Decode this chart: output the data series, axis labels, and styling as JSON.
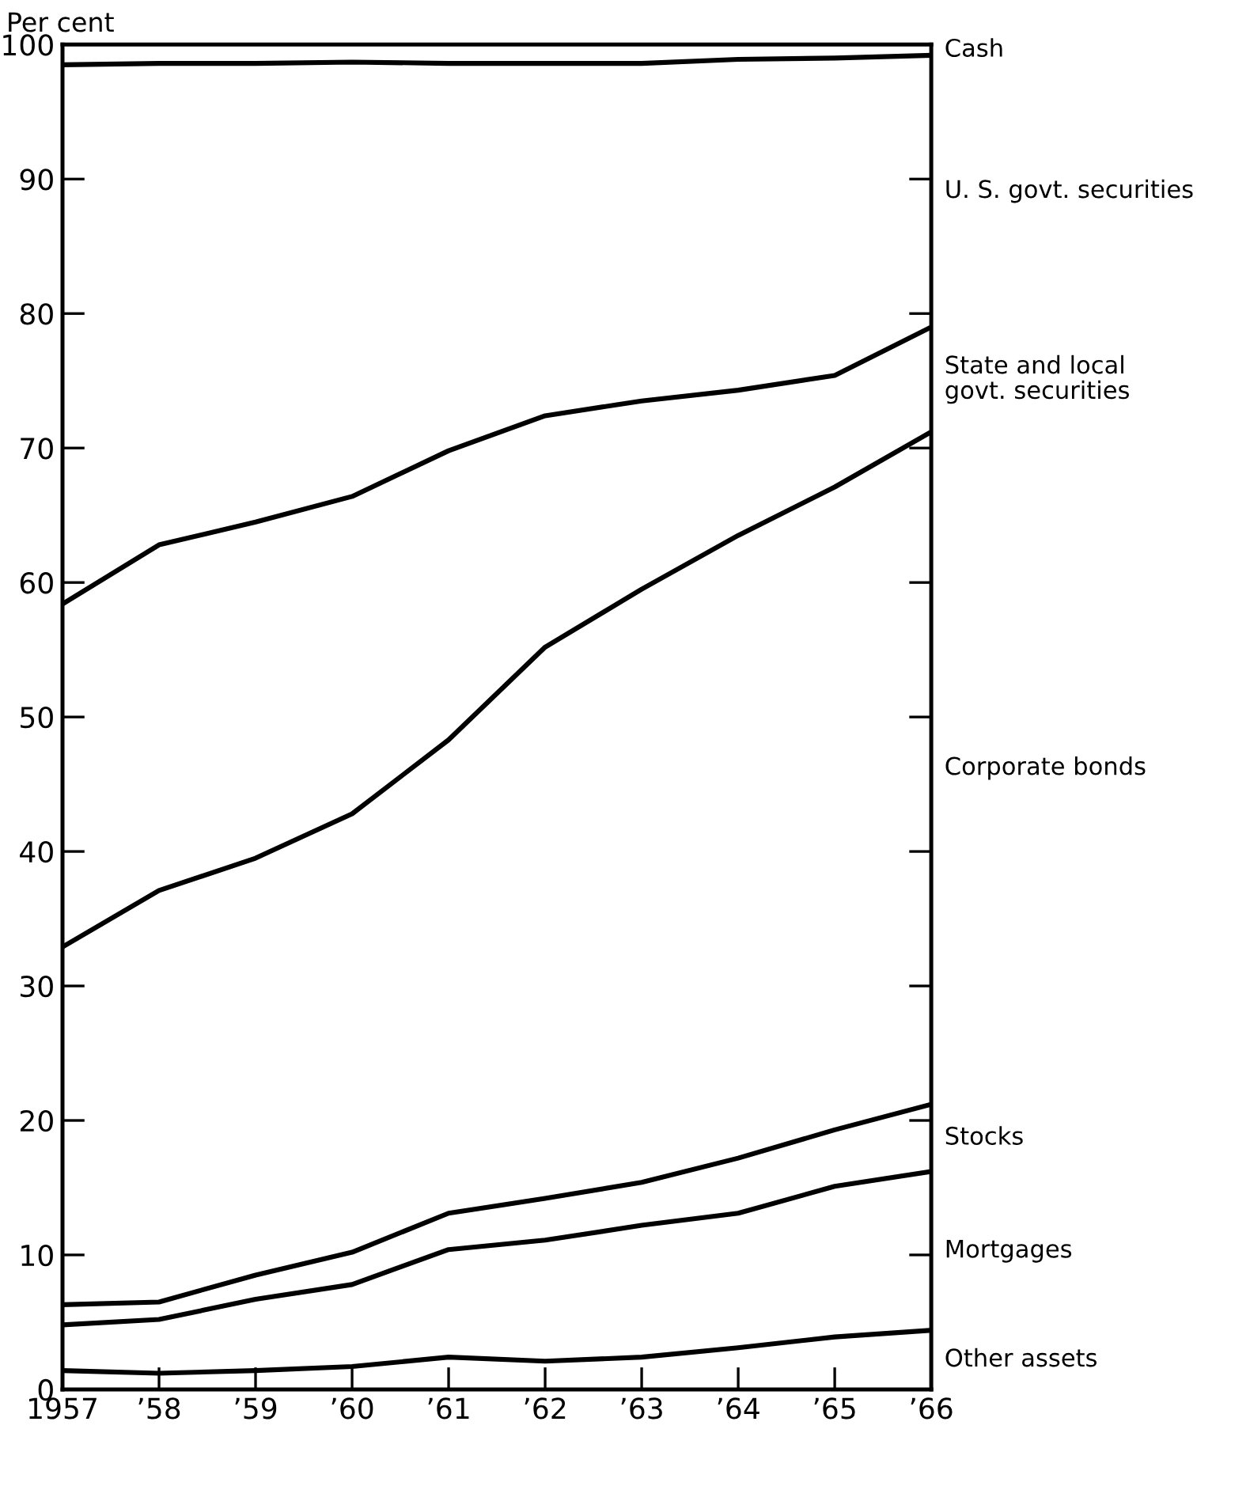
{
  "chart_data": {
    "type": "line",
    "ylabel": "Per cent",
    "categories": [
      "1957",
      "’58",
      "’59",
      "’60",
      "’61",
      "’62",
      "’63",
      "’64",
      "’65",
      "’66"
    ],
    "series": [
      {
        "color": "#000000",
        "values": [
          1.4,
          1.2,
          1.4,
          1.7,
          2.4,
          2.1,
          2.4,
          3.1,
          3.9,
          4.4
        ]
      },
      {
        "color": "#000000",
        "values": [
          4.8,
          5.2,
          6.7,
          7.8,
          10.4,
          11.1,
          12.2,
          13.1,
          15.1,
          16.2
        ]
      },
      {
        "color": "#000000",
        "values": [
          6.3,
          6.5,
          8.5,
          10.2,
          13.1,
          14.2,
          15.4,
          17.2,
          19.3,
          21.2
        ]
      },
      {
        "color": "#000000",
        "values": [
          32.9,
          37.1,
          39.5,
          42.8,
          48.3,
          55.2,
          59.5,
          63.5,
          67.1,
          71.2
        ]
      },
      {
        "color": "#000000",
        "values": [
          58.4,
          62.8,
          64.5,
          66.4,
          69.8,
          72.4,
          73.5,
          74.3,
          75.4,
          79.0
        ]
      },
      {
        "color": "#000000",
        "values": [
          98.5,
          98.6,
          98.6,
          98.7,
          98.6,
          98.6,
          98.6,
          98.9,
          99.0,
          99.2
        ]
      }
    ],
    "annotations": [
      "Cash",
      "U. S. govt. securities",
      "State and local\ngovt. securities",
      "Corporate bonds",
      "Stocks",
      "Mortgages",
      "Other assets"
    ],
    "ylim": [
      0,
      100
    ],
    "yticks": [
      0,
      10,
      20,
      30,
      40,
      50,
      60,
      70,
      80,
      90,
      100
    ],
    "grid": false
  }
}
